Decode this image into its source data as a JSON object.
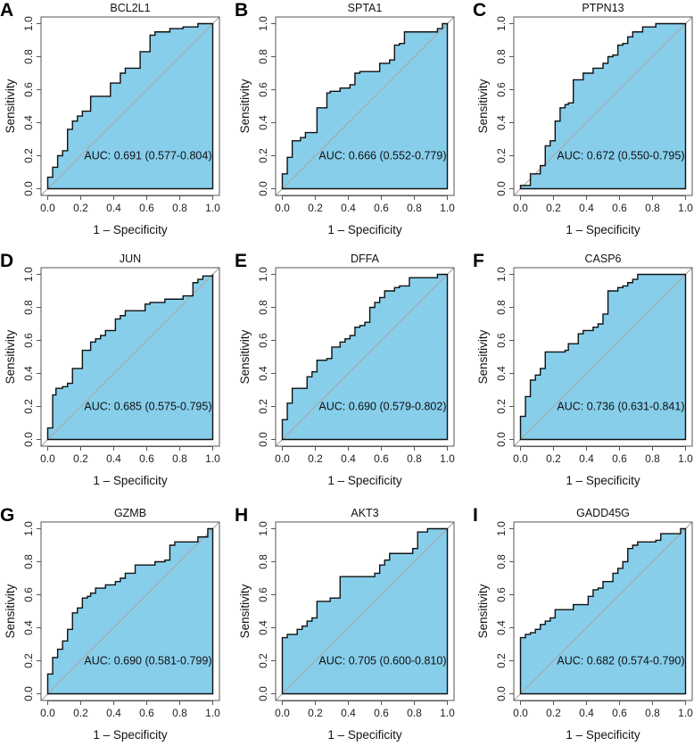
{
  "figure": {
    "fill_color": "#87CEEB",
    "diagonal_color": "#AAAAAA",
    "curve_color": "#111111"
  },
  "chart_data": [
    {
      "type": "line",
      "panel": "A",
      "title": "BCL2L1",
      "auc_text": "AUC: 0.691 (0.577-0.804)",
      "xlabel": "1 – Specificity",
      "ylabel": "Sensitivity",
      "xlim": [
        0,
        1
      ],
      "ylim": [
        0,
        1
      ],
      "xticks": [
        "0.0",
        "0.2",
        "0.4",
        "0.6",
        "0.8",
        "1.0"
      ],
      "yticks": [
        "0.0",
        "0.2",
        "0.4",
        "0.6",
        "0.8",
        "1.0"
      ],
      "steps": [
        [
          0,
          0.07
        ],
        [
          0.03,
          0.13
        ],
        [
          0.06,
          0.2
        ],
        [
          0.09,
          0.23
        ],
        [
          0.12,
          0.36
        ],
        [
          0.15,
          0.41
        ],
        [
          0.18,
          0.44
        ],
        [
          0.21,
          0.47
        ],
        [
          0.26,
          0.56
        ],
        [
          0.38,
          0.64
        ],
        [
          0.44,
          0.7
        ],
        [
          0.47,
          0.73
        ],
        [
          0.56,
          0.83
        ],
        [
          0.62,
          0.93
        ],
        [
          0.65,
          0.95
        ],
        [
          0.74,
          0.97
        ],
        [
          0.82,
          0.98
        ],
        [
          0.91,
          1.0
        ]
      ]
    },
    {
      "type": "line",
      "panel": "B",
      "title": "SPTA1",
      "auc_text": "AUC: 0.666 (0.552-0.779)",
      "xlabel": "1 – Specificity",
      "ylabel": "Sensitivity",
      "xlim": [
        0,
        1
      ],
      "ylim": [
        0,
        1
      ],
      "xticks": [
        "0.0",
        "0.2",
        "0.4",
        "0.6",
        "0.8",
        "1.0"
      ],
      "yticks": [
        "0.0",
        "0.2",
        "0.4",
        "0.6",
        "0.8",
        "1.0"
      ],
      "steps": [
        [
          0,
          0.09
        ],
        [
          0.03,
          0.19
        ],
        [
          0.06,
          0.29
        ],
        [
          0.11,
          0.31
        ],
        [
          0.14,
          0.34
        ],
        [
          0.21,
          0.49
        ],
        [
          0.27,
          0.58
        ],
        [
          0.29,
          0.59
        ],
        [
          0.35,
          0.61
        ],
        [
          0.41,
          0.63
        ],
        [
          0.44,
          0.7
        ],
        [
          0.47,
          0.71
        ],
        [
          0.59,
          0.76
        ],
        [
          0.65,
          0.78
        ],
        [
          0.68,
          0.87
        ],
        [
          0.71,
          0.88
        ],
        [
          0.74,
          0.95
        ],
        [
          0.94,
          0.97
        ],
        [
          0.97,
          1.0
        ]
      ]
    },
    {
      "type": "line",
      "panel": "C",
      "title": "PTPN13",
      "auc_text": "AUC: 0.672 (0.550-0.795)",
      "xlabel": "1 – Specificity",
      "ylabel": "Sensitivity",
      "xlim": [
        0,
        1
      ],
      "ylim": [
        0,
        1
      ],
      "xticks": [
        "0.0",
        "0.2",
        "0.4",
        "0.6",
        "0.8",
        "1.0"
      ],
      "yticks": [
        "0.0",
        "0.2",
        "0.4",
        "0.6",
        "0.8",
        "1.0"
      ],
      "steps": [
        [
          0,
          0.02
        ],
        [
          0.06,
          0.09
        ],
        [
          0.12,
          0.14
        ],
        [
          0.15,
          0.26
        ],
        [
          0.18,
          0.29
        ],
        [
          0.21,
          0.41
        ],
        [
          0.24,
          0.49
        ],
        [
          0.27,
          0.51
        ],
        [
          0.29,
          0.52
        ],
        [
          0.32,
          0.66
        ],
        [
          0.38,
          0.7
        ],
        [
          0.44,
          0.73
        ],
        [
          0.5,
          0.76
        ],
        [
          0.53,
          0.8
        ],
        [
          0.56,
          0.81
        ],
        [
          0.59,
          0.87
        ],
        [
          0.62,
          0.88
        ],
        [
          0.65,
          0.92
        ],
        [
          0.68,
          0.95
        ],
        [
          0.74,
          0.98
        ],
        [
          0.82,
          1.0
        ]
      ]
    },
    {
      "type": "line",
      "panel": "D",
      "title": "JUN",
      "auc_text": "AUC: 0.685 (0.575-0.795)",
      "xlabel": "1 – Specificity",
      "ylabel": "Sensitivity",
      "xlim": [
        0,
        1
      ],
      "ylim": [
        0,
        1
      ],
      "xticks": [
        "0.0",
        "0.2",
        "0.4",
        "0.6",
        "0.8",
        "1.0"
      ],
      "yticks": [
        "0.0",
        "0.2",
        "0.4",
        "0.6",
        "0.8",
        "1.0"
      ],
      "steps": [
        [
          0,
          0.07
        ],
        [
          0.03,
          0.27
        ],
        [
          0.05,
          0.31
        ],
        [
          0.09,
          0.32
        ],
        [
          0.12,
          0.34
        ],
        [
          0.15,
          0.43
        ],
        [
          0.21,
          0.54
        ],
        [
          0.26,
          0.59
        ],
        [
          0.29,
          0.61
        ],
        [
          0.32,
          0.63
        ],
        [
          0.35,
          0.66
        ],
        [
          0.41,
          0.73
        ],
        [
          0.44,
          0.75
        ],
        [
          0.47,
          0.78
        ],
        [
          0.59,
          0.82
        ],
        [
          0.62,
          0.83
        ],
        [
          0.71,
          0.85
        ],
        [
          0.82,
          0.87
        ],
        [
          0.88,
          0.95
        ],
        [
          0.91,
          0.97
        ],
        [
          0.94,
          0.99
        ],
        [
          1.0,
          1.0
        ]
      ]
    },
    {
      "type": "line",
      "panel": "E",
      "title": "DFFA",
      "auc_text": "AUC: 0.690 (0.579-0.802)",
      "xlabel": "1 – Specificity",
      "ylabel": "Sensitivity",
      "xlim": [
        0,
        1
      ],
      "ylim": [
        0,
        1
      ],
      "xticks": [
        "0.0",
        "0.2",
        "0.4",
        "0.6",
        "0.8",
        "1.0"
      ],
      "yticks": [
        "0.0",
        "0.2",
        "0.4",
        "0.6",
        "0.8",
        "1.0"
      ],
      "steps": [
        [
          0,
          0.12
        ],
        [
          0.03,
          0.22
        ],
        [
          0.06,
          0.31
        ],
        [
          0.15,
          0.38
        ],
        [
          0.18,
          0.41
        ],
        [
          0.21,
          0.48
        ],
        [
          0.27,
          0.49
        ],
        [
          0.3,
          0.56
        ],
        [
          0.35,
          0.59
        ],
        [
          0.38,
          0.61
        ],
        [
          0.41,
          0.63
        ],
        [
          0.44,
          0.68
        ],
        [
          0.47,
          0.69
        ],
        [
          0.5,
          0.71
        ],
        [
          0.53,
          0.8
        ],
        [
          0.56,
          0.83
        ],
        [
          0.59,
          0.86
        ],
        [
          0.62,
          0.9
        ],
        [
          0.68,
          0.92
        ],
        [
          0.71,
          0.93
        ],
        [
          0.77,
          0.98
        ],
        [
          0.94,
          1.0
        ]
      ]
    },
    {
      "type": "line",
      "panel": "F",
      "title": "CASP6",
      "auc_text": "AUC: 0.736 (0.631-0.841)",
      "xlabel": "1 – Specificity",
      "ylabel": "Sensitivity",
      "xlim": [
        0,
        1
      ],
      "ylim": [
        0,
        1
      ],
      "xticks": [
        "0.0",
        "0.2",
        "0.4",
        "0.6",
        "0.8",
        "1.0"
      ],
      "yticks": [
        "0.0",
        "0.2",
        "0.4",
        "0.6",
        "0.8",
        "1.0"
      ],
      "steps": [
        [
          0,
          0.14
        ],
        [
          0.03,
          0.26
        ],
        [
          0.06,
          0.36
        ],
        [
          0.09,
          0.39
        ],
        [
          0.12,
          0.43
        ],
        [
          0.15,
          0.53
        ],
        [
          0.27,
          0.54
        ],
        [
          0.29,
          0.58
        ],
        [
          0.35,
          0.64
        ],
        [
          0.38,
          0.66
        ],
        [
          0.44,
          0.68
        ],
        [
          0.47,
          0.7
        ],
        [
          0.5,
          0.76
        ],
        [
          0.53,
          0.9
        ],
        [
          0.59,
          0.92
        ],
        [
          0.62,
          0.93
        ],
        [
          0.65,
          0.95
        ],
        [
          0.68,
          0.97
        ],
        [
          0.71,
          1.0
        ]
      ]
    },
    {
      "type": "line",
      "panel": "G",
      "title": "GZMB",
      "auc_text": "AUC: 0.690 (0.581-0.799)",
      "xlabel": "1 – Specificity",
      "ylabel": "Sensitivity",
      "xlim": [
        0,
        1
      ],
      "ylim": [
        0,
        1
      ],
      "xticks": [
        "0.0",
        "0.2",
        "0.4",
        "0.6",
        "0.8",
        "1.0"
      ],
      "yticks": [
        "0.0",
        "0.2",
        "0.4",
        "0.6",
        "0.8",
        "1.0"
      ],
      "steps": [
        [
          0,
          0.12
        ],
        [
          0.03,
          0.22
        ],
        [
          0.06,
          0.27
        ],
        [
          0.09,
          0.32
        ],
        [
          0.12,
          0.39
        ],
        [
          0.15,
          0.49
        ],
        [
          0.18,
          0.52
        ],
        [
          0.21,
          0.58
        ],
        [
          0.24,
          0.59
        ],
        [
          0.26,
          0.61
        ],
        [
          0.29,
          0.64
        ],
        [
          0.35,
          0.66
        ],
        [
          0.41,
          0.68
        ],
        [
          0.44,
          0.7
        ],
        [
          0.47,
          0.73
        ],
        [
          0.53,
          0.78
        ],
        [
          0.65,
          0.8
        ],
        [
          0.71,
          0.81
        ],
        [
          0.74,
          0.9
        ],
        [
          0.77,
          0.92
        ],
        [
          0.91,
          0.95
        ],
        [
          0.97,
          1.0
        ]
      ]
    },
    {
      "type": "line",
      "panel": "H",
      "title": "AKT3",
      "auc_text": "AUC: 0.705 (0.600-0.810)",
      "xlabel": "1 – Specificity",
      "ylabel": "Sensitivity",
      "xlim": [
        0,
        1
      ],
      "ylim": [
        0,
        1
      ],
      "xticks": [
        "0.0",
        "0.2",
        "0.4",
        "0.6",
        "0.8",
        "1.0"
      ],
      "yticks": [
        "0.0",
        "0.2",
        "0.4",
        "0.6",
        "0.8",
        "1.0"
      ],
      "steps": [
        [
          0,
          0.34
        ],
        [
          0.03,
          0.36
        ],
        [
          0.09,
          0.39
        ],
        [
          0.12,
          0.41
        ],
        [
          0.15,
          0.44
        ],
        [
          0.18,
          0.46
        ],
        [
          0.21,
          0.56
        ],
        [
          0.29,
          0.58
        ],
        [
          0.35,
          0.71
        ],
        [
          0.56,
          0.73
        ],
        [
          0.59,
          0.78
        ],
        [
          0.62,
          0.81
        ],
        [
          0.65,
          0.85
        ],
        [
          0.79,
          0.88
        ],
        [
          0.82,
          0.98
        ],
        [
          0.88,
          1.0
        ]
      ]
    },
    {
      "type": "line",
      "panel": "I",
      "title": "GADD45G",
      "auc_text": "AUC: 0.682 (0.574-0.790)",
      "xlabel": "1 – Specificity",
      "ylabel": "Sensitivity",
      "xlim": [
        0,
        1
      ],
      "ylim": [
        0,
        1
      ],
      "xticks": [
        "0.0",
        "0.2",
        "0.4",
        "0.6",
        "0.8",
        "1.0"
      ],
      "yticks": [
        "0.0",
        "0.2",
        "0.4",
        "0.6",
        "0.8",
        "1.0"
      ],
      "steps": [
        [
          0,
          0.34
        ],
        [
          0.03,
          0.36
        ],
        [
          0.06,
          0.37
        ],
        [
          0.09,
          0.39
        ],
        [
          0.12,
          0.42
        ],
        [
          0.15,
          0.44
        ],
        [
          0.18,
          0.46
        ],
        [
          0.21,
          0.51
        ],
        [
          0.32,
          0.54
        ],
        [
          0.41,
          0.59
        ],
        [
          0.44,
          0.63
        ],
        [
          0.47,
          0.64
        ],
        [
          0.5,
          0.68
        ],
        [
          0.56,
          0.73
        ],
        [
          0.59,
          0.76
        ],
        [
          0.62,
          0.8
        ],
        [
          0.65,
          0.88
        ],
        [
          0.68,
          0.9
        ],
        [
          0.71,
          0.92
        ],
        [
          0.82,
          0.93
        ],
        [
          0.85,
          0.97
        ],
        [
          0.97,
          1.0
        ]
      ]
    }
  ]
}
